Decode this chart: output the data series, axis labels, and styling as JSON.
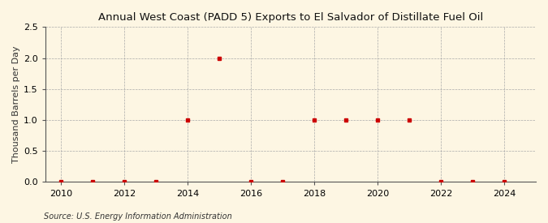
{
  "title": "Annual West Coast (PADD 5) Exports to El Salvador of Distillate Fuel Oil",
  "ylabel": "Thousand Barrels per Day",
  "source": "Source: U.S. Energy Information Administration",
  "background_color": "#fdf6e3",
  "plot_bg_color": "#fdf6e3",
  "x_data": [
    2010,
    2011,
    2012,
    2013,
    2014,
    2015,
    2016,
    2017,
    2018,
    2019,
    2020,
    2021,
    2022,
    2023,
    2024
  ],
  "y_data": [
    0.0,
    0.01,
    0.0,
    0.01,
    1.0,
    2.0,
    0.01,
    0.01,
    1.0,
    1.0,
    1.0,
    1.0,
    0.01,
    0.01,
    0.01
  ],
  "marker_color": "#cc0000",
  "marker_size": 3.5,
  "xlim": [
    2009.5,
    2025.0
  ],
  "ylim": [
    0.0,
    2.5
  ],
  "yticks": [
    0.0,
    0.5,
    1.0,
    1.5,
    2.0,
    2.5
  ],
  "xticks": [
    2010,
    2012,
    2014,
    2016,
    2018,
    2020,
    2022,
    2024
  ],
  "grid_color": "#aaaaaa",
  "title_fontsize": 9.5,
  "label_fontsize": 8,
  "tick_fontsize": 8,
  "source_fontsize": 7
}
